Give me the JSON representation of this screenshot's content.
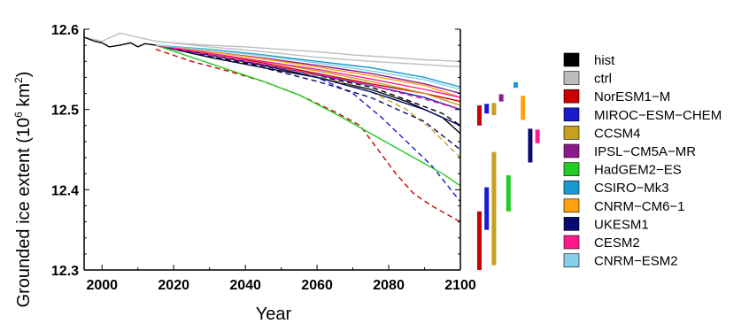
{
  "chart_data": {
    "type": "line",
    "xlabel": "Year",
    "ylabel_main": "Grounded ice extent (10",
    "ylabel_sup": "6",
    "ylabel_end": " km",
    "ylabel_sup2": "2",
    "ylabel_close": ")",
    "xlim": [
      1995,
      2100
    ],
    "ylim": [
      12.3,
      12.6
    ],
    "xticks": [
      "2000",
      "2020",
      "2040",
      "2060",
      "2080",
      "2100"
    ],
    "yticks": [
      "12.3",
      "12.4",
      "12.5",
      "12.6"
    ],
    "colors": {
      "hist": "#000000",
      "ctrl": "#bdbdbd",
      "NorESM1-M": "#cc0000",
      "MIROC-ESM-CHEM": "#1a1acc",
      "CCSM4": "#c8a020",
      "IPSL-CM5A-MR": "#8b1a8b",
      "HadGEM2-ES": "#22cc22",
      "CSIRO-Mk3": "#1a9acc",
      "CNRM-CM6-1": "#ffa010",
      "UKESM1": "#0a0a6e",
      "CESM2": "#ff1a8c",
      "CNRM-ESM2": "#87ceeb"
    },
    "legend": [
      {
        "name": "hist",
        "key": "hist"
      },
      {
        "name": "ctrl",
        "key": "ctrl"
      },
      {
        "name": "NorESM1−M",
        "key": "NorESM1-M"
      },
      {
        "name": "MIROC−ESM−CHEM",
        "key": "MIROC-ESM-CHEM"
      },
      {
        "name": "CCSM4",
        "key": "CCSM4"
      },
      {
        "name": "IPSL−CM5A−MR",
        "key": "IPSL-CM5A-MR"
      },
      {
        "name": "HadGEM2−ES",
        "key": "HadGEM2-ES"
      },
      {
        "name": "CSIRO−Mk3",
        "key": "CSIRO-Mk3"
      },
      {
        "name": "CNRM−CM6−1",
        "key": "CNRM-CM6-1"
      },
      {
        "name": "UKESM1",
        "key": "UKESM1"
      },
      {
        "name": "CESM2",
        "key": "CESM2"
      },
      {
        "name": "CNRM−ESM2",
        "key": "CNRM-ESM2"
      }
    ],
    "series": [
      {
        "key": "ctrl",
        "style": "solid",
        "points": [
          [
            1995,
            12.59
          ],
          [
            2000,
            12.585
          ],
          [
            2005,
            12.595
          ],
          [
            2010,
            12.59
          ],
          [
            2015,
            12.585
          ],
          [
            2020,
            12.583
          ],
          [
            2030,
            12.58
          ],
          [
            2040,
            12.578
          ],
          [
            2050,
            12.575
          ],
          [
            2060,
            12.572
          ],
          [
            2070,
            12.568
          ],
          [
            2080,
            12.565
          ],
          [
            2090,
            12.562
          ],
          [
            2100,
            12.56
          ]
        ]
      },
      {
        "key": "ctrl",
        "style": "solid",
        "points": [
          [
            2015,
            12.585
          ],
          [
            2030,
            12.578
          ],
          [
            2045,
            12.572
          ],
          [
            2060,
            12.565
          ],
          [
            2075,
            12.56
          ],
          [
            2090,
            12.556
          ],
          [
            2100,
            12.553
          ]
        ]
      },
      {
        "key": "hist",
        "style": "solid",
        "points": [
          [
            1995,
            12.59
          ],
          [
            1998,
            12.585
          ],
          [
            2000,
            12.583
          ],
          [
            2002,
            12.578
          ],
          [
            2005,
            12.58
          ],
          [
            2008,
            12.583
          ],
          [
            2010,
            12.578
          ],
          [
            2012,
            12.582
          ],
          [
            2015,
            12.58
          ]
        ]
      },
      {
        "key": "hist",
        "style": "solid",
        "points": [
          [
            2015,
            12.58
          ],
          [
            2030,
            12.565
          ],
          [
            2045,
            12.552
          ],
          [
            2060,
            12.54
          ],
          [
            2075,
            12.525
          ],
          [
            2085,
            12.51
          ],
          [
            2095,
            12.49
          ],
          [
            2100,
            12.47
          ]
        ]
      },
      {
        "key": "hist",
        "style": "dashed",
        "points": [
          [
            2015,
            12.58
          ],
          [
            2030,
            12.566
          ],
          [
            2045,
            12.554
          ],
          [
            2060,
            12.542
          ],
          [
            2075,
            12.528
          ],
          [
            2085,
            12.512
          ],
          [
            2095,
            12.495
          ],
          [
            2100,
            12.48
          ]
        ]
      },
      {
        "key": "NorESM1-M",
        "style": "solid",
        "points": [
          [
            2015,
            12.58
          ],
          [
            2030,
            12.57
          ],
          [
            2045,
            12.558
          ],
          [
            2060,
            12.545
          ],
          [
            2075,
            12.532
          ],
          [
            2090,
            12.52
          ],
          [
            2100,
            12.51
          ]
        ]
      },
      {
        "key": "NorESM1-M",
        "style": "dashed",
        "points": [
          [
            2015,
            12.575
          ],
          [
            2025,
            12.56
          ],
          [
            2035,
            12.548
          ],
          [
            2045,
            12.535
          ],
          [
            2055,
            12.518
          ],
          [
            2065,
            12.497
          ],
          [
            2072,
            12.48
          ],
          [
            2077,
            12.45
          ],
          [
            2082,
            12.42
          ],
          [
            2087,
            12.395
          ],
          [
            2092,
            12.38
          ],
          [
            2100,
            12.36
          ]
        ]
      },
      {
        "key": "MIROC-ESM-CHEM",
        "style": "solid",
        "points": [
          [
            2015,
            12.58
          ],
          [
            2030,
            12.568
          ],
          [
            2045,
            12.556
          ],
          [
            2060,
            12.543
          ],
          [
            2075,
            12.53
          ],
          [
            2090,
            12.515
          ],
          [
            2100,
            12.5
          ]
        ]
      },
      {
        "key": "MIROC-ESM-CHEM",
        "style": "dashed",
        "points": [
          [
            2015,
            12.58
          ],
          [
            2030,
            12.568
          ],
          [
            2045,
            12.555
          ],
          [
            2060,
            12.54
          ],
          [
            2070,
            12.52
          ],
          [
            2078,
            12.49
          ],
          [
            2085,
            12.46
          ],
          [
            2092,
            12.43
          ],
          [
            2100,
            12.385
          ]
        ]
      },
      {
        "key": "CCSM4",
        "style": "solid",
        "points": [
          [
            2015,
            12.58
          ],
          [
            2030,
            12.57
          ],
          [
            2045,
            12.56
          ],
          [
            2060,
            12.548
          ],
          [
            2075,
            12.535
          ],
          [
            2090,
            12.52
          ],
          [
            2100,
            12.505
          ]
        ]
      },
      {
        "key": "CCSM4",
        "style": "dashed",
        "points": [
          [
            2015,
            12.58
          ],
          [
            2030,
            12.568
          ],
          [
            2045,
            12.556
          ],
          [
            2060,
            12.542
          ],
          [
            2075,
            12.522
          ],
          [
            2085,
            12.5
          ],
          [
            2092,
            12.475
          ],
          [
            2100,
            12.44
          ]
        ]
      },
      {
        "key": "IPSL-CM5A-MR",
        "style": "solid",
        "points": [
          [
            2015,
            12.58
          ],
          [
            2030,
            12.572
          ],
          [
            2045,
            12.564
          ],
          [
            2060,
            12.555
          ],
          [
            2075,
            12.545
          ],
          [
            2090,
            12.532
          ],
          [
            2100,
            12.52
          ]
        ]
      },
      {
        "key": "HadGEM2-ES",
        "style": "solid",
        "points": [
          [
            2015,
            12.58
          ],
          [
            2025,
            12.565
          ],
          [
            2035,
            12.55
          ],
          [
            2045,
            12.535
          ],
          [
            2055,
            12.518
          ],
          [
            2065,
            12.495
          ],
          [
            2075,
            12.47
          ],
          [
            2085,
            12.445
          ],
          [
            2095,
            12.42
          ],
          [
            2100,
            12.405
          ]
        ]
      },
      {
        "key": "CSIRO-Mk3",
        "style": "solid",
        "points": [
          [
            2015,
            12.58
          ],
          [
            2030,
            12.575
          ],
          [
            2045,
            12.568
          ],
          [
            2060,
            12.56
          ],
          [
            2075,
            12.552
          ],
          [
            2090,
            12.54
          ],
          [
            2100,
            12.528
          ]
        ]
      },
      {
        "key": "CNRM-CM6-1",
        "style": "solid",
        "points": [
          [
            2015,
            12.58
          ],
          [
            2030,
            12.572
          ],
          [
            2045,
            12.563
          ],
          [
            2060,
            12.553
          ],
          [
            2075,
            12.542
          ],
          [
            2090,
            12.53
          ],
          [
            2100,
            12.515
          ]
        ]
      },
      {
        "key": "UKESM1",
        "style": "solid",
        "points": [
          [
            2015,
            12.58
          ],
          [
            2030,
            12.568
          ],
          [
            2045,
            12.555
          ],
          [
            2060,
            12.54
          ],
          [
            2075,
            12.522
          ],
          [
            2090,
            12.5
          ],
          [
            2100,
            12.48
          ]
        ]
      },
      {
        "key": "UKESM1",
        "style": "dashed",
        "points": [
          [
            2015,
            12.58
          ],
          [
            2030,
            12.566
          ],
          [
            2045,
            12.552
          ],
          [
            2060,
            12.535
          ],
          [
            2075,
            12.515
          ],
          [
            2090,
            12.485
          ],
          [
            2100,
            12.45
          ]
        ]
      },
      {
        "key": "CESM2",
        "style": "solid",
        "points": [
          [
            2015,
            12.58
          ],
          [
            2030,
            12.57
          ],
          [
            2045,
            12.56
          ],
          [
            2060,
            12.55
          ],
          [
            2075,
            12.538
          ],
          [
            2090,
            12.525
          ],
          [
            2100,
            12.515
          ]
        ]
      },
      {
        "key": "CESM2",
        "style": "dashed",
        "points": [
          [
            2015,
            12.58
          ],
          [
            2030,
            12.568
          ],
          [
            2045,
            12.556
          ],
          [
            2060,
            12.544
          ],
          [
            2075,
            12.53
          ],
          [
            2090,
            12.513
          ],
          [
            2100,
            12.5
          ]
        ]
      },
      {
        "key": "CNRM-ESM2",
        "style": "solid",
        "points": [
          [
            2015,
            12.58
          ],
          [
            2030,
            12.574
          ],
          [
            2045,
            12.567
          ],
          [
            2060,
            12.558
          ],
          [
            2075,
            12.548
          ],
          [
            2090,
            12.537
          ],
          [
            2100,
            12.525
          ]
        ]
      }
    ],
    "range_bars": [
      {
        "key": "NorESM1-M",
        "low": 12.48,
        "high": 12.505
      },
      {
        "key": "NorESM1-M",
        "low": 12.3,
        "high": 12.373
      },
      {
        "key": "MIROC-ESM-CHEM",
        "low": 12.495,
        "high": 12.507
      },
      {
        "key": "MIROC-ESM-CHEM",
        "low": 12.35,
        "high": 12.403
      },
      {
        "key": "CCSM4",
        "low": 12.493,
        "high": 12.508
      },
      {
        "key": "CCSM4",
        "low": 12.306,
        "high": 12.447
      },
      {
        "key": "IPSL-CM5A-MR",
        "low": 12.51,
        "high": 12.519
      },
      {
        "key": "HadGEM2-ES",
        "low": 12.373,
        "high": 12.418
      },
      {
        "key": "CSIRO-Mk3",
        "low": 12.527,
        "high": 12.534
      },
      {
        "key": "CNRM-CM6-1",
        "low": 12.487,
        "high": 12.517
      },
      {
        "key": "UKESM1",
        "low": 12.434,
        "high": 12.476
      },
      {
        "key": "CESM2",
        "low": 12.458,
        "high": 12.475
      }
    ]
  }
}
